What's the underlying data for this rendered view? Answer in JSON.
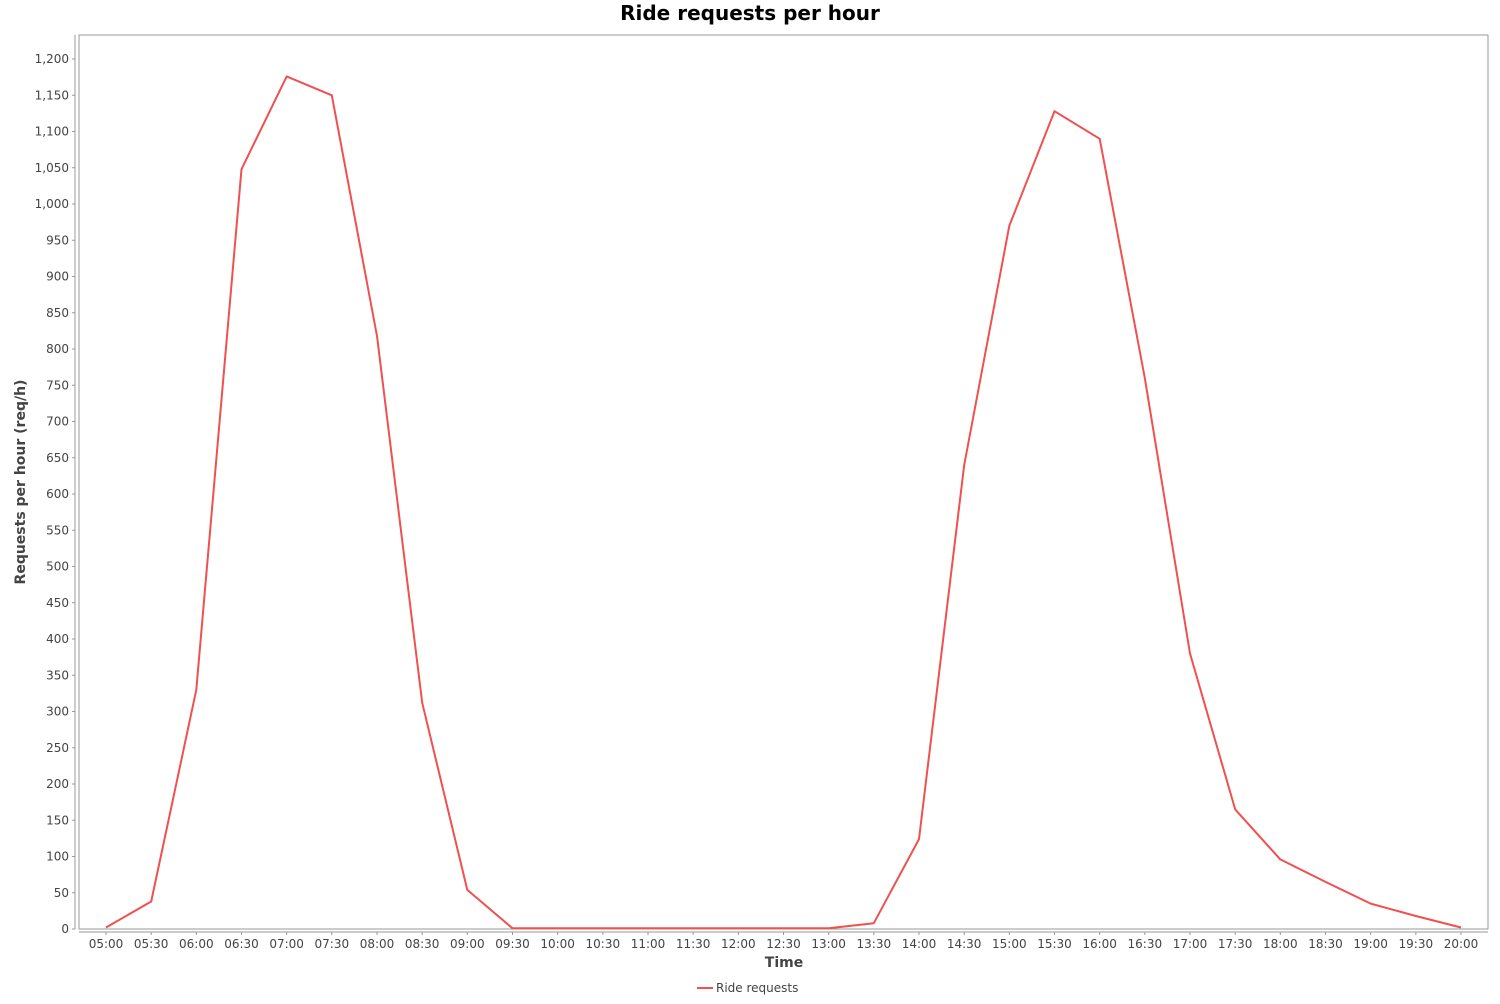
{
  "colors": {
    "series_line": "#f05050",
    "plot_border": "#999999",
    "axis_line": "#999999",
    "background": "#ffffff"
  },
  "chart_data": {
    "type": "line",
    "title": "Ride requests per hour",
    "xlabel": "Time",
    "ylabel": "Requests per hour (req/h)",
    "ylim": [
      0,
      1200
    ],
    "y_ticks": [
      0,
      50,
      100,
      150,
      200,
      250,
      300,
      350,
      400,
      450,
      500,
      550,
      600,
      650,
      700,
      750,
      800,
      850,
      900,
      950,
      1000,
      1050,
      1100,
      1150,
      1200
    ],
    "grid": false,
    "legend": "bottom-center",
    "categories": [
      "05:00",
      "05:30",
      "06:00",
      "06:30",
      "07:00",
      "07:30",
      "08:00",
      "08:30",
      "09:00",
      "09:30",
      "10:00",
      "10:30",
      "11:00",
      "11:30",
      "12:00",
      "12:30",
      "13:00",
      "13:30",
      "14:00",
      "14:30",
      "15:00",
      "15:30",
      "16:00",
      "16:30",
      "17:00",
      "17:30",
      "18:00",
      "18:30",
      "19:00",
      "19:30",
      "20:00"
    ],
    "series": [
      {
        "name": "Ride requests",
        "color": "#f05050",
        "values": [
          2,
          38,
          330,
          1048,
          1176,
          1150,
          818,
          312,
          54,
          1,
          1,
          1,
          1,
          1,
          1,
          1,
          1,
          8,
          124,
          640,
          970,
          1128,
          1090,
          760,
          380,
          165,
          96,
          65,
          35,
          18,
          2
        ]
      }
    ]
  }
}
